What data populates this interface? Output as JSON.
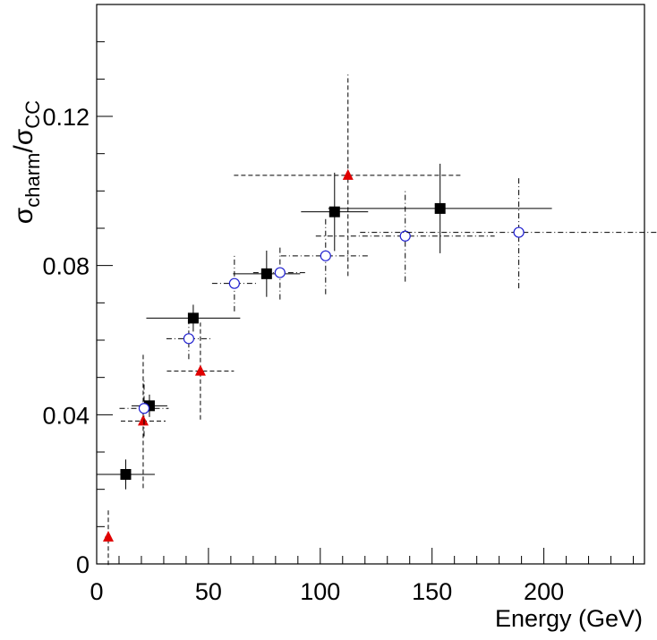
{
  "chart_data": {
    "type": "scatter",
    "xlabel": "Energy (GeV)",
    "ylabel": [
      "σ",
      "charm",
      "/σ",
      "CC"
    ],
    "xlim": [
      0,
      245
    ],
    "ylim": [
      0,
      0.15
    ],
    "xticks": [
      0,
      50,
      100,
      150,
      200
    ],
    "yticks": [
      0,
      0.04,
      0.08,
      0.12
    ],
    "series": [
      {
        "color": "#000000",
        "marker": "square",
        "line_style": "solid",
        "x": [
          13,
          23.6,
          43.2,
          76,
          106.4,
          153.6
        ],
        "values": [
          0.024,
          0.0424,
          0.0659,
          0.0778,
          0.0944,
          0.0953
        ],
        "xerr": [
          13,
          8,
          21,
          15,
          15,
          50
        ],
        "yerr": [
          0.004,
          0.003,
          0.0036,
          0.0062,
          0.0105,
          0.012
        ]
      },
      {
        "color": "#e00000",
        "marker": "triangle",
        "line_style": "dashed",
        "x": [
          5.2,
          20.8,
          46.4,
          112.4
        ],
        "values": [
          0.0072,
          0.0383,
          0.0517,
          0.1042
        ],
        "xerr": [
          1.5,
          10,
          15,
          51
        ],
        "yerr": [
          0.0075,
          0.018,
          0.013,
          0.027
        ]
      },
      {
        "color": "#2020d0",
        "marker": "circle",
        "line_style": "dashdot",
        "x": [
          21.2,
          41.2,
          61.6,
          82,
          102.4,
          138,
          188.8
        ],
        "values": [
          0.0417,
          0.0604,
          0.0752,
          0.0781,
          0.0826,
          0.0879,
          0.0889
        ],
        "xerr": [
          11,
          10,
          10,
          12,
          20,
          40,
          71
        ],
        "yerr": [
          0.0075,
          0.0055,
          0.0075,
          0.0072,
          0.0103,
          0.0122,
          0.015
        ]
      }
    ]
  }
}
